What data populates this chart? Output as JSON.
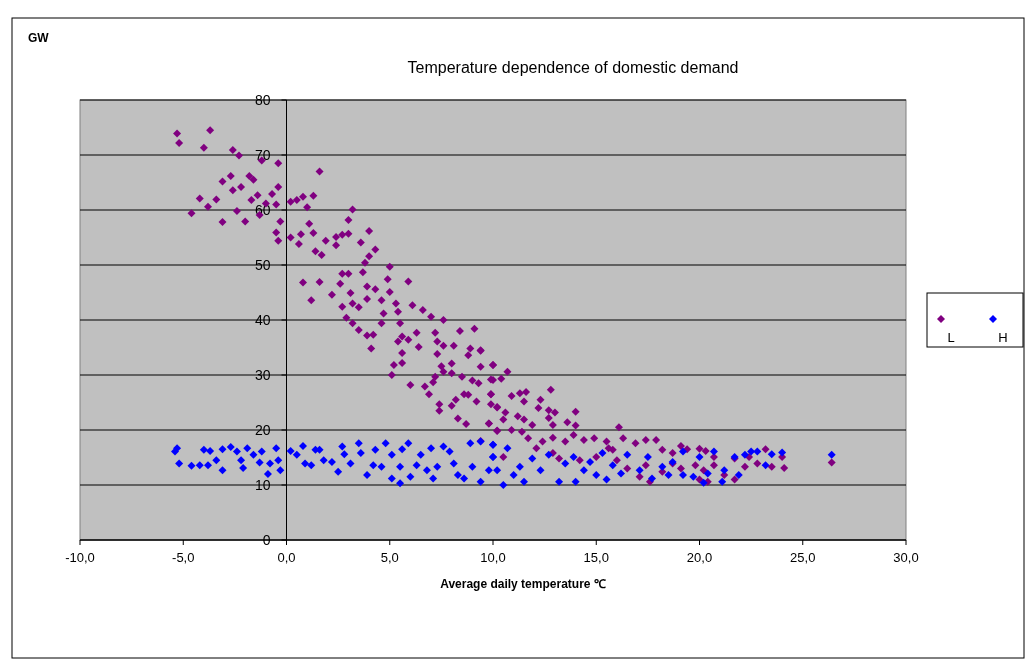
{
  "chart_data": {
    "type": "scatter",
    "title": "Temperature dependence of domestic demand",
    "xlabel": "Average daily temperature ℃",
    "ylabel": "GW",
    "xlim": [
      -10,
      30
    ],
    "xticks": [
      {
        "value": -10,
        "label": "-10,0"
      },
      {
        "value": -5,
        "label": "-5,0"
      },
      {
        "value": 0,
        "label": "0,0"
      },
      {
        "value": 5,
        "label": "5,0"
      },
      {
        "value": 10,
        "label": "10,0"
      },
      {
        "value": 15,
        "label": "15,0"
      },
      {
        "value": 20,
        "label": "20,0"
      },
      {
        "value": 25,
        "label": "25,0"
      },
      {
        "value": 30,
        "label": "30,0"
      }
    ],
    "ylim": [
      0,
      80
    ],
    "yticks": [
      0,
      10,
      20,
      30,
      40,
      50,
      60,
      70,
      80
    ],
    "grid": "y",
    "legend": "right",
    "marker": "diamond",
    "series": [
      {
        "name": "L",
        "color": "#800080",
        "x": [
          -5.3,
          -5.2,
          -3.7,
          -4.0,
          -2.6,
          -2.3,
          -1.2,
          -0.4,
          1.6,
          -3.1,
          -2.7,
          -4.2,
          -4.6,
          -3.8,
          -3.4,
          -3.1,
          -2.0,
          -2.4,
          -2.6,
          -2.2,
          -1.8,
          -1.6,
          -1.7,
          -1.4,
          -1.3,
          -0.7,
          -1.0,
          -0.4,
          -0.5,
          -0.3,
          -0.5,
          -0.4,
          0.2,
          0.6,
          0.7,
          0.2,
          0.5,
          0.8,
          1.0,
          1.3,
          1.1,
          1.3,
          1.4,
          1.7,
          1.9,
          2.4,
          2.4,
          2.7,
          3.0,
          3.0,
          3.2,
          3.6,
          4.0,
          4.3,
          4.0,
          3.8,
          5.0,
          3.7,
          4.9,
          5.9,
          0.8,
          1.6,
          1.2,
          2.7,
          3.0,
          2.6,
          2.2,
          3.1,
          2.7,
          3.2,
          3.5,
          2.9,
          3.2,
          3.5,
          3.9,
          3.9,
          4.3,
          4.6,
          5.0,
          4.7,
          4.6,
          4.2,
          3.9,
          4.1,
          5.3,
          5.4,
          5.5,
          5.4,
          5.6,
          5.9,
          5.6,
          5.2,
          5.6,
          5.1,
          6.0,
          6.1,
          6.6,
          6.3,
          6.4,
          7.0,
          6.7,
          6.9,
          7.2,
          7.3,
          7.6,
          7.3,
          7.6,
          7.5,
          7.6,
          7.2,
          7.1,
          8.0,
          8.0,
          8.1,
          8.4,
          9.1,
          8.8,
          8.9,
          9.4,
          8.5,
          9.0,
          9.3,
          9.4,
          10.0,
          8.6,
          8.8,
          8.2,
          8.0,
          7.4,
          7.4,
          9.2,
          8.3,
          8.7,
          9.9,
          10.0,
          10.2,
          9.8,
          10.2,
          9.4,
          9.4,
          10.0,
          10.7,
          9.9,
          10.4,
          9.9,
          10.9,
          11.3,
          11.6,
          12.8,
          9.9,
          10.2,
          10.6,
          11.5,
          12.3,
          12.2,
          12.7,
          13.0,
          14.0,
          9.8,
          10.5,
          11.2,
          11.5,
          11.9,
          12.7,
          12.9,
          13.6,
          14.0,
          10.2,
          10.9,
          11.4,
          11.7,
          12.4,
          12.9,
          13.5,
          13.9,
          14.4,
          14.9,
          15.5,
          16.1,
          16.3,
          15.8,
          16.9,
          17.4,
          17.9,
          18.2,
          18.7,
          19.1,
          19.4,
          20.0,
          20.3,
          20.7,
          21.7,
          22.4,
          23.2,
          24.0,
          24.1,
          23.5,
          22.8,
          22.2,
          21.7,
          21.2,
          20.7,
          20.2,
          20.4,
          20.0,
          19.8,
          19.1,
          18.7,
          18.2,
          17.6,
          17.1,
          17.4,
          16.5,
          16.0,
          26.4,
          12.9,
          13.2,
          14.2,
          15.0,
          15.6,
          12.1,
          10.5
        ],
        "values": [
          73.9,
          72.2,
          74.5,
          71.3,
          70.9,
          69.9,
          69.0,
          68.5,
          67.0,
          65.2,
          66.2,
          62.1,
          59.4,
          60.6,
          61.9,
          57.8,
          57.9,
          59.8,
          63.6,
          64.2,
          66.2,
          65.5,
          61.8,
          62.7,
          59.1,
          62.9,
          61.2,
          64.2,
          61.0,
          57.9,
          55.9,
          54.4,
          55.0,
          53.8,
          55.6,
          61.5,
          61.8,
          62.4,
          60.5,
          62.6,
          57.5,
          55.8,
          52.5,
          51.8,
          54.4,
          53.6,
          55.1,
          55.5,
          55.7,
          58.2,
          60.1,
          54.1,
          56.2,
          52.8,
          51.6,
          50.4,
          49.7,
          48.7,
          47.4,
          47.0,
          46.8,
          46.9,
          43.6,
          48.4,
          48.4,
          46.6,
          44.6,
          44.9,
          42.4,
          43.0,
          42.3,
          40.4,
          39.4,
          38.2,
          43.8,
          46.1,
          45.6,
          43.6,
          45.1,
          41.2,
          39.4,
          37.3,
          37.2,
          34.8,
          43.0,
          41.5,
          39.4,
          36.1,
          37.0,
          36.4,
          34.0,
          31.8,
          32.2,
          30.0,
          28.2,
          42.7,
          41.8,
          37.7,
          35.1,
          40.6,
          27.9,
          26.5,
          37.7,
          36.1,
          35.3,
          33.8,
          40.0,
          31.6,
          30.6,
          29.7,
          28.7,
          32.1,
          30.3,
          35.3,
          38.0,
          38.4,
          33.6,
          34.8,
          34.4,
          29.7,
          29.0,
          28.5,
          31.5,
          31.8,
          26.5,
          26.4,
          25.5,
          24.4,
          24.7,
          23.5,
          25.2,
          22.1,
          21.1,
          26.5,
          29.1,
          24.2,
          21.2,
          19.9,
          18.0,
          34.5,
          31.8,
          30.6,
          29.2,
          29.3,
          26.5,
          26.2,
          26.7,
          26.9,
          27.3,
          24.7,
          24.1,
          23.2,
          25.2,
          25.5,
          24.0,
          23.6,
          23.2,
          23.3,
          21.2,
          21.9,
          22.5,
          21.9,
          20.9,
          22.2,
          20.9,
          21.4,
          20.8,
          19.8,
          20.0,
          19.7,
          18.5,
          17.9,
          18.6,
          17.9,
          19.1,
          18.2,
          18.5,
          17.9,
          20.5,
          18.5,
          16.4,
          17.6,
          18.2,
          18.2,
          16.4,
          15.8,
          17.1,
          16.5,
          16.6,
          16.2,
          15.1,
          14.8,
          15.1,
          16.5,
          15.1,
          13.1,
          13.3,
          13.9,
          13.3,
          11.0,
          11.8,
          13.6,
          12.7,
          10.6,
          11.0,
          13.6,
          13.0,
          13.9,
          12.4,
          10.6,
          11.5,
          13.6,
          13.0,
          14.5,
          14.1,
          15.8,
          14.8,
          14.5,
          15.1,
          16.7,
          16.7,
          15.1
        ]
      },
      {
        "name": "H",
        "color": "#0000ff",
        "x": [
          -5.3,
          -5.4,
          -5.2,
          -4.6,
          -4.2,
          -3.8,
          -4.0,
          -3.7,
          -3.4,
          -3.1,
          -3.1,
          -2.7,
          -2.4,
          -2.2,
          -2.1,
          -1.9,
          -1.6,
          -1.3,
          -1.2,
          -0.9,
          -0.8,
          -0.5,
          -0.4,
          -0.3,
          0.2,
          0.5,
          0.8,
          0.9,
          1.2,
          1.4,
          1.6,
          1.8,
          2.2,
          2.5,
          2.7,
          2.8,
          3.1,
          3.5,
          3.6,
          3.9,
          4.2,
          4.3,
          4.6,
          4.8,
          5.1,
          5.1,
          5.5,
          5.5,
          5.6,
          5.9,
          6.0,
          6.3,
          6.5,
          6.8,
          7.0,
          7.1,
          7.3,
          7.6,
          7.9,
          8.1,
          8.3,
          8.6,
          8.9,
          9.0,
          9.4,
          9.4,
          9.8,
          10.0,
          10.0,
          10.0,
          10.0,
          10.2,
          10.5,
          10.7,
          11.0,
          11.3,
          11.5,
          11.9,
          12.3,
          12.7,
          13.2,
          13.5,
          13.9,
          14.0,
          14.4,
          14.7,
          15.0,
          15.3,
          15.5,
          15.8,
          16.2,
          16.5,
          17.1,
          17.5,
          17.7,
          18.2,
          18.5,
          18.7,
          19.2,
          19.2,
          19.7,
          20.0,
          20.2,
          20.4,
          20.7,
          21.1,
          21.2,
          21.7,
          21.9,
          22.2,
          22.5,
          22.8,
          23.2,
          23.5,
          24.0,
          26.4
        ],
        "values": [
          16.7,
          16.1,
          13.9,
          13.5,
          13.6,
          13.6,
          16.4,
          16.2,
          14.5,
          16.5,
          12.7,
          16.9,
          16.1,
          14.5,
          13.1,
          16.7,
          15.5,
          14.1,
          16.1,
          12.0,
          13.9,
          16.7,
          14.5,
          12.7,
          16.2,
          15.5,
          17.1,
          13.9,
          13.6,
          16.4,
          16.4,
          14.5,
          14.2,
          12.4,
          17.0,
          15.6,
          13.9,
          17.6,
          15.8,
          11.8,
          13.6,
          16.4,
          13.3,
          17.6,
          15.5,
          11.2,
          10.3,
          13.3,
          16.5,
          17.6,
          11.5,
          13.6,
          15.5,
          12.7,
          16.7,
          11.2,
          13.3,
          17.0,
          16.1,
          13.9,
          11.8,
          11.2,
          17.6,
          13.3,
          17.9,
          10.6,
          12.7,
          17.3,
          15.1,
          17.3,
          15.1,
          12.7,
          10.0,
          16.7,
          11.8,
          13.3,
          10.6,
          14.8,
          12.7,
          15.5,
          10.6,
          13.9,
          15.1,
          10.6,
          12.7,
          14.2,
          11.8,
          15.8,
          11.0,
          13.6,
          12.1,
          15.5,
          12.7,
          15.1,
          11.2,
          13.3,
          11.8,
          14.2,
          16.1,
          11.8,
          11.5,
          15.1,
          10.4,
          12.1,
          16.1,
          10.6,
          12.7,
          15.1,
          11.8,
          15.5,
          16.1,
          16.1,
          13.6,
          15.6,
          15.9,
          15.5
        ]
      }
    ]
  }
}
